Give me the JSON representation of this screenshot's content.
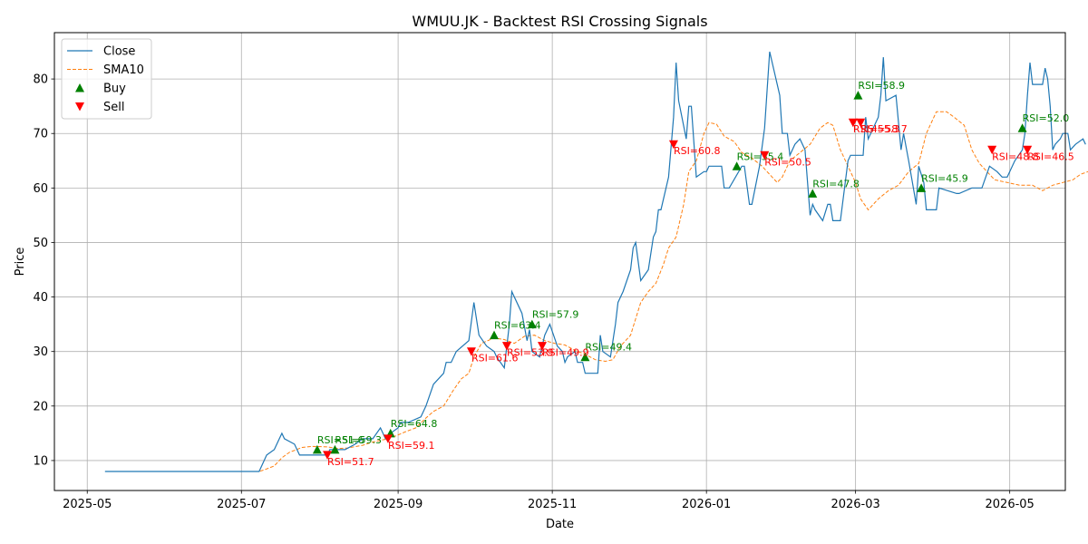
{
  "chart_data": {
    "type": "line",
    "title": "WMUU.JK - Backtest RSI Crossing Signals",
    "xlabel": "Date",
    "ylabel": "Price",
    "xlim": [
      "2025-04-18",
      "2026-05-23"
    ],
    "ylim": [
      4.5,
      88.5
    ],
    "x_ticks": [
      "2025-05",
      "2025-07",
      "2025-09",
      "2025-11",
      "2026-01",
      "2026-03",
      "2026-05"
    ],
    "y_ticks": [
      10,
      20,
      30,
      40,
      50,
      60,
      70,
      80
    ],
    "grid": true,
    "legend_position": "upper-left",
    "colors": {
      "close": "#1f77b4",
      "sma": "#ff7f0e",
      "buy": "#008000",
      "sell": "#ff0000"
    },
    "legend": [
      {
        "label": "Close",
        "kind": "line"
      },
      {
        "label": "SMA10",
        "kind": "dashed"
      },
      {
        "label": "Buy",
        "kind": "buy"
      },
      {
        "label": "Sell",
        "kind": "sell"
      }
    ],
    "close": [
      [
        "2025-05-08",
        8
      ],
      [
        "2025-07-08",
        8
      ],
      [
        "2025-07-11",
        11
      ],
      [
        "2025-07-14",
        12
      ],
      [
        "2025-07-16",
        14
      ],
      [
        "2025-07-17",
        15
      ],
      [
        "2025-07-18",
        14
      ],
      [
        "2025-07-22",
        13
      ],
      [
        "2025-07-24",
        11
      ],
      [
        "2025-08-04",
        11
      ],
      [
        "2025-08-05",
        12
      ],
      [
        "2025-08-11",
        12
      ],
      [
        "2025-08-15",
        13
      ],
      [
        "2025-08-18",
        14
      ],
      [
        "2025-08-22",
        14
      ],
      [
        "2025-08-25",
        16
      ],
      [
        "2025-08-27",
        14
      ],
      [
        "2025-08-29",
        15
      ],
      [
        "2025-09-01",
        16
      ],
      [
        "2025-09-02",
        17
      ],
      [
        "2025-09-05",
        17
      ],
      [
        "2025-09-10",
        18
      ],
      [
        "2025-09-12",
        20
      ],
      [
        "2025-09-15",
        24
      ],
      [
        "2025-09-19",
        26
      ],
      [
        "2025-09-20",
        28
      ],
      [
        "2025-09-22",
        28
      ],
      [
        "2025-09-24",
        30
      ],
      [
        "2025-09-29",
        32
      ],
      [
        "2025-10-01",
        39
      ],
      [
        "2025-10-03",
        33
      ],
      [
        "2025-10-06",
        31
      ],
      [
        "2025-10-09",
        30
      ],
      [
        "2025-10-10",
        29
      ],
      [
        "2025-10-13",
        27
      ],
      [
        "2025-10-15",
        35
      ],
      [
        "2025-10-16",
        41
      ],
      [
        "2025-10-20",
        37
      ],
      [
        "2025-10-22",
        32
      ],
      [
        "2025-10-23",
        34
      ],
      [
        "2025-10-24",
        30
      ],
      [
        "2025-10-27",
        29
      ],
      [
        "2025-10-29",
        33
      ],
      [
        "2025-10-31",
        35
      ],
      [
        "2025-11-03",
        31
      ],
      [
        "2025-11-05",
        30
      ],
      [
        "2025-11-06",
        28
      ],
      [
        "2025-11-07",
        29
      ],
      [
        "2025-11-10",
        30
      ],
      [
        "2025-11-11",
        28
      ],
      [
        "2025-11-13",
        28
      ],
      [
        "2025-11-14",
        26
      ],
      [
        "2025-11-19",
        26
      ],
      [
        "2025-11-20",
        33
      ],
      [
        "2025-11-21",
        30
      ],
      [
        "2025-11-24",
        29
      ],
      [
        "2025-11-26",
        35
      ],
      [
        "2025-11-27",
        39
      ],
      [
        "2025-11-29",
        41
      ],
      [
        "2025-12-02",
        45
      ],
      [
        "2025-12-03",
        49
      ],
      [
        "2025-12-04",
        50
      ],
      [
        "2025-12-06",
        43
      ],
      [
        "2025-12-09",
        45
      ],
      [
        "2025-12-11",
        51
      ],
      [
        "2025-12-12",
        52
      ],
      [
        "2025-12-13",
        56
      ],
      [
        "2025-12-14",
        56
      ],
      [
        "2025-12-17",
        62
      ],
      [
        "2025-12-19",
        73
      ],
      [
        "2025-12-20",
        83
      ],
      [
        "2025-12-21",
        76
      ],
      [
        "2025-12-24",
        69
      ],
      [
        "2025-12-25",
        75
      ],
      [
        "2025-12-26",
        75
      ],
      [
        "2025-12-28",
        62
      ],
      [
        "2025-12-31",
        63
      ],
      [
        "2026-01-01",
        63
      ],
      [
        "2026-01-02",
        64
      ],
      [
        "2026-01-07",
        64
      ],
      [
        "2026-01-08",
        60
      ],
      [
        "2026-01-10",
        60
      ],
      [
        "2026-01-15",
        64
      ],
      [
        "2026-01-16",
        64
      ],
      [
        "2026-01-18",
        57
      ],
      [
        "2026-01-19",
        57
      ],
      [
        "2026-01-22",
        64
      ],
      [
        "2026-01-24",
        71
      ],
      [
        "2026-01-25",
        78
      ],
      [
        "2026-01-26",
        85
      ],
      [
        "2026-01-30",
        77
      ],
      [
        "2026-01-31",
        70
      ],
      [
        "2026-02-02",
        70
      ],
      [
        "2026-02-03",
        66
      ],
      [
        "2026-02-05",
        68
      ],
      [
        "2026-02-07",
        69
      ],
      [
        "2026-02-09",
        67
      ],
      [
        "2026-02-11",
        55
      ],
      [
        "2026-02-12",
        57
      ],
      [
        "2026-02-13",
        56
      ],
      [
        "2026-02-16",
        54
      ],
      [
        "2026-02-18",
        57
      ],
      [
        "2026-02-19",
        57
      ],
      [
        "2026-02-20",
        54
      ],
      [
        "2026-02-23",
        54
      ],
      [
        "2026-02-26",
        65
      ],
      [
        "2026-02-27",
        66
      ],
      [
        "2026-03-04",
        66
      ],
      [
        "2026-03-05",
        73
      ],
      [
        "2026-03-06",
        69
      ],
      [
        "2026-03-10",
        73
      ],
      [
        "2026-03-11",
        77
      ],
      [
        "2026-03-12",
        84
      ],
      [
        "2026-03-13",
        76
      ],
      [
        "2026-03-17",
        77
      ],
      [
        "2026-03-19",
        67
      ],
      [
        "2026-03-20",
        70
      ],
      [
        "2026-03-22",
        65
      ],
      [
        "2026-03-25",
        57
      ],
      [
        "2026-03-26",
        64
      ],
      [
        "2026-03-28",
        61
      ],
      [
        "2026-03-29",
        56
      ],
      [
        "2026-04-02",
        56
      ],
      [
        "2026-04-03",
        60
      ],
      [
        "2026-04-10",
        59
      ],
      [
        "2026-04-11",
        59
      ],
      [
        "2026-04-16",
        60
      ],
      [
        "2026-04-17",
        60
      ],
      [
        "2026-04-20",
        60
      ],
      [
        "2026-04-23",
        64
      ],
      [
        "2026-04-26",
        63
      ],
      [
        "2026-04-28",
        62
      ],
      [
        "2026-04-30",
        62
      ],
      [
        "2026-05-03",
        65
      ],
      [
        "2026-05-06",
        67
      ],
      [
        "2026-05-07",
        70
      ],
      [
        "2026-05-08",
        77
      ],
      [
        "2026-05-09",
        83
      ],
      [
        "2026-05-10",
        79
      ],
      [
        "2026-05-14",
        79
      ],
      [
        "2026-05-15",
        82
      ],
      [
        "2026-05-16",
        80
      ],
      [
        "2026-05-17",
        75
      ],
      [
        "2026-05-18",
        67
      ],
      [
        "2026-05-19",
        68
      ],
      [
        "2026-05-21",
        69
      ],
      [
        "2026-05-22",
        70
      ],
      [
        "2026-05-24",
        70
      ],
      [
        "2026-05-25",
        67
      ],
      [
        "2026-05-27",
        68
      ],
      [
        "2026-05-30",
        69
      ],
      [
        "2026-05-31",
        68
      ]
    ],
    "sma10": [
      [
        "2025-05-22",
        8
      ],
      [
        "2025-07-08",
        8
      ],
      [
        "2025-07-10",
        8.3
      ],
      [
        "2025-07-14",
        9
      ],
      [
        "2025-07-17",
        10.5
      ],
      [
        "2025-07-20",
        11.5
      ],
      [
        "2025-07-25",
        12.4
      ],
      [
        "2025-07-29",
        12.6
      ],
      [
        "2025-08-04",
        12.5
      ],
      [
        "2025-08-08",
        12.2
      ],
      [
        "2025-08-12",
        12.3
      ],
      [
        "2025-08-18",
        12.8
      ],
      [
        "2025-08-22",
        13.4
      ],
      [
        "2025-08-27",
        13.9
      ],
      [
        "2025-08-31",
        14.5
      ],
      [
        "2025-09-04",
        15.3
      ],
      [
        "2025-09-08",
        16
      ],
      [
        "2025-09-12",
        17.8
      ],
      [
        "2025-09-15",
        19
      ],
      [
        "2025-09-19",
        20
      ],
      [
        "2025-09-23",
        23
      ],
      [
        "2025-09-26",
        25
      ],
      [
        "2025-09-29",
        26
      ],
      [
        "2025-10-01",
        29
      ],
      [
        "2025-10-04",
        31.5
      ],
      [
        "2025-10-09",
        32.5
      ],
      [
        "2025-10-13",
        32.2
      ],
      [
        "2025-10-17",
        31.5
      ],
      [
        "2025-10-21",
        32.8
      ],
      [
        "2025-10-25",
        33
      ],
      [
        "2025-10-29",
        32
      ],
      [
        "2025-11-02",
        31.5
      ],
      [
        "2025-11-06",
        31.2
      ],
      [
        "2025-11-10",
        30.2
      ],
      [
        "2025-11-14",
        29.5
      ],
      [
        "2025-11-18",
        28.5
      ],
      [
        "2025-11-22",
        28.2
      ],
      [
        "2025-11-25",
        28.5
      ],
      [
        "2025-11-28",
        31
      ],
      [
        "2025-12-02",
        33
      ],
      [
        "2025-12-03",
        34.5
      ],
      [
        "2025-12-06",
        39
      ],
      [
        "2025-12-09",
        41
      ],
      [
        "2025-12-12",
        42.5
      ],
      [
        "2025-12-15",
        46
      ],
      [
        "2025-12-17",
        49
      ],
      [
        "2025-12-20",
        51
      ],
      [
        "2025-12-23",
        57
      ],
      [
        "2025-12-25",
        63
      ],
      [
        "2025-12-28",
        65
      ],
      [
        "2025-12-31",
        70
      ],
      [
        "2026-01-02",
        72
      ],
      [
        "2026-01-05",
        71.7
      ],
      [
        "2026-01-08",
        69.5
      ],
      [
        "2026-01-12",
        68.5
      ],
      [
        "2026-01-15",
        66.5
      ],
      [
        "2026-01-19",
        65.5
      ],
      [
        "2026-01-23",
        64
      ],
      [
        "2026-01-27",
        62
      ],
      [
        "2026-01-29",
        61
      ],
      [
        "2026-01-31",
        62
      ],
      [
        "2026-02-03",
        65
      ],
      [
        "2026-02-07",
        66.5
      ],
      [
        "2026-02-11",
        68
      ],
      [
        "2026-02-15",
        71
      ],
      [
        "2026-02-18",
        72
      ],
      [
        "2026-02-20",
        71.5
      ],
      [
        "2026-02-23",
        67
      ],
      [
        "2026-02-26",
        64
      ],
      [
        "2026-03-01",
        61
      ],
      [
        "2026-03-03",
        58
      ],
      [
        "2026-03-06",
        56
      ],
      [
        "2026-03-10",
        58
      ],
      [
        "2026-03-14",
        59.5
      ],
      [
        "2026-03-18",
        60.5
      ],
      [
        "2026-03-22",
        63
      ],
      [
        "2026-03-26",
        64.5
      ],
      [
        "2026-03-29",
        70
      ],
      [
        "2026-04-02",
        74
      ],
      [
        "2026-04-06",
        74
      ],
      [
        "2026-04-09",
        73
      ],
      [
        "2026-04-13",
        71.5
      ],
      [
        "2026-04-16",
        67
      ],
      [
        "2026-04-19",
        64.5
      ],
      [
        "2026-04-22",
        63
      ],
      [
        "2026-04-25",
        61.5
      ],
      [
        "2026-04-30",
        61
      ],
      [
        "2026-05-05",
        60.5
      ],
      [
        "2026-05-10",
        60.5
      ],
      [
        "2026-05-14",
        59.5
      ],
      [
        "2026-05-18",
        60.5
      ],
      [
        "2026-05-22",
        61
      ],
      [
        "2026-05-26",
        61.5
      ],
      [
        "2026-05-29",
        62.5
      ],
      [
        "2026-06-01",
        63
      ]
    ],
    "buy_signals": [
      {
        "date": "2025-07-31",
        "price": 12,
        "label": "RSI=51.6"
      },
      {
        "date": "2025-08-07",
        "price": 12,
        "label": "RSI=59.3"
      },
      {
        "date": "2025-08-29",
        "price": 15,
        "label": "RSI=64.8"
      },
      {
        "date": "2025-10-09",
        "price": 33,
        "label": "RSI=63.4"
      },
      {
        "date": "2025-10-24",
        "price": 35,
        "label": "RSI=57.9"
      },
      {
        "date": "2025-11-14",
        "price": 29,
        "label": "RSI=49.4"
      },
      {
        "date": "2026-01-13",
        "price": 64,
        "label": "RSI=55.4"
      },
      {
        "date": "2026-02-12",
        "price": 59,
        "label": "RSI=47.8"
      },
      {
        "date": "2026-03-02",
        "price": 77,
        "label": "RSI=58.9"
      },
      {
        "date": "2026-03-27",
        "price": 60,
        "label": "RSI=45.9"
      },
      {
        "date": "2026-05-06",
        "price": 71,
        "label": "RSI=52.0"
      }
    ],
    "sell_signals": [
      {
        "date": "2025-08-04",
        "price": 11,
        "label": "RSI=51.7"
      },
      {
        "date": "2025-08-28",
        "price": 14,
        "label": "RSI=59.1"
      },
      {
        "date": "2025-09-30",
        "price": 30,
        "label": "RSI=61.6"
      },
      {
        "date": "2025-10-14",
        "price": 31,
        "label": "RSI=53.9"
      },
      {
        "date": "2025-10-28",
        "price": 31,
        "label": "RSI=49.9"
      },
      {
        "date": "2025-12-19",
        "price": 68,
        "label": "RSI=60.8"
      },
      {
        "date": "2026-01-24",
        "price": 66,
        "label": "RSI=50.5"
      },
      {
        "date": "2026-02-28",
        "price": 72,
        "label": "RSI=55.3"
      },
      {
        "date": "2026-03-03",
        "price": 72,
        "label": "RSI=58.7"
      },
      {
        "date": "2026-04-24",
        "price": 67,
        "label": "RSI=48.8"
      },
      {
        "date": "2026-05-08",
        "price": 67,
        "label": "RSI=46.5"
      }
    ]
  }
}
